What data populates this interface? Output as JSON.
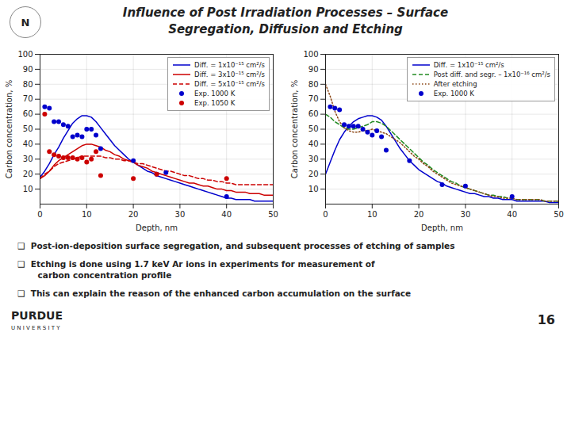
{
  "title": "Influence of Post Irradiation Processes – Surface",
  "subtitle": "Segregation, Diffusion and Etching",
  "annotations": [
    "N",
    "❑  Post-ion-deposition surface segregation, and subsequent processes of etching of samples",
    "❑  Etching is done using 1.7 keV Ar ions in experiments for measurement of\n       carbon concentration profile",
    "❑  This can explain the reason of the enhanced carbon accumulation on the surface",
    "PURDUE",
    "U N I V E R S I T Y",
    "16"
  ],
  "chart_data": [
    {
      "type": "line",
      "xlabel": "Depth, nm",
      "ylabel": "Carbon concentration, %",
      "xlim": [
        0,
        50
      ],
      "ylim": [
        0,
        100
      ],
      "xticks": [
        0,
        10,
        20,
        30,
        40,
        50
      ],
      "yticks": [
        10,
        20,
        30,
        40,
        50,
        60,
        70,
        80,
        90,
        100
      ],
      "grid": true,
      "legend": "upper right",
      "series": [
        {
          "name": "Diff. = 1x10⁻¹⁵ cm²/s",
          "color": "#0000CC",
          "type": "line",
          "line_style": "solid",
          "x": [
            0,
            1,
            2,
            3,
            4,
            5,
            6,
            7,
            8,
            9,
            10,
            11,
            12,
            13,
            14,
            15,
            16,
            17,
            18,
            19,
            20,
            21,
            22,
            23,
            24,
            25,
            26,
            27,
            28,
            29,
            30,
            31,
            32,
            33,
            34,
            35,
            36,
            37,
            38,
            39,
            40,
            41,
            42,
            43,
            44,
            45,
            46,
            47,
            48,
            49,
            50
          ],
          "values": [
            18,
            22,
            27,
            33,
            38,
            44,
            49,
            54,
            57,
            59,
            59,
            58,
            55,
            51,
            47,
            43,
            39,
            36,
            33,
            30,
            28,
            26,
            24,
            22,
            21,
            19,
            18,
            17,
            16,
            15,
            14,
            13,
            12,
            11,
            10,
            9,
            8,
            7,
            6,
            5,
            4,
            4,
            3,
            3,
            3,
            3,
            2,
            2,
            2,
            2,
            2
          ]
        },
        {
          "name": "Diff. = 3x10⁻¹⁵ cm²/s",
          "color": "#CC0000",
          "type": "line",
          "line_style": "solid",
          "x": [
            0,
            1,
            2,
            3,
            4,
            5,
            6,
            7,
            8,
            9,
            10,
            11,
            12,
            13,
            14,
            15,
            16,
            17,
            18,
            19,
            20,
            21,
            22,
            23,
            24,
            25,
            26,
            27,
            28,
            29,
            30,
            31,
            32,
            33,
            34,
            35,
            36,
            37,
            38,
            39,
            40,
            41,
            42,
            43,
            44,
            45,
            46,
            47,
            48,
            49,
            50
          ],
          "values": [
            17,
            19,
            22,
            26,
            29,
            31,
            33,
            35,
            37,
            39,
            40,
            40,
            39,
            38,
            36,
            35,
            33,
            32,
            30,
            29,
            28,
            26,
            25,
            24,
            22,
            21,
            20,
            19,
            18,
            17,
            16,
            15,
            14,
            14,
            13,
            12,
            12,
            11,
            10,
            10,
            9,
            9,
            8,
            8,
            8,
            7,
            7,
            7,
            6,
            6,
            6
          ]
        },
        {
          "name": "Diff. = 5x10⁻¹⁵ cm²/s",
          "color": "#CC0000",
          "type": "line",
          "line_style": "dashed",
          "x": [
            0,
            1,
            2,
            3,
            4,
            5,
            6,
            7,
            8,
            9,
            10,
            11,
            12,
            13,
            14,
            15,
            16,
            17,
            18,
            19,
            20,
            21,
            22,
            23,
            24,
            25,
            26,
            27,
            28,
            29,
            30,
            31,
            32,
            33,
            34,
            35,
            36,
            37,
            38,
            39,
            40,
            41,
            42,
            43,
            44,
            45,
            46,
            47,
            48,
            49,
            50
          ],
          "values": [
            17,
            20,
            22,
            25,
            27,
            28,
            29,
            30,
            31,
            32,
            32,
            32,
            32,
            32,
            31,
            31,
            30,
            30,
            29,
            29,
            28,
            27,
            27,
            26,
            25,
            24,
            23,
            22,
            22,
            21,
            20,
            19,
            19,
            18,
            17,
            17,
            16,
            16,
            15,
            15,
            14,
            14,
            13,
            13,
            13,
            13,
            13,
            13,
            13,
            13,
            13
          ]
        },
        {
          "name": "Exp. 1000 K",
          "color": "#0000CC",
          "type": "scatter",
          "marker": "circle",
          "x": [
            1,
            2,
            3,
            4,
            5,
            6,
            7,
            8,
            9,
            10,
            11,
            12,
            13,
            20,
            25,
            27,
            40
          ],
          "values": [
            65,
            64,
            55,
            55,
            53,
            52,
            45,
            46,
            45,
            50,
            50,
            46,
            37,
            29,
            20,
            21,
            5
          ]
        },
        {
          "name": "Exp. 1050 K",
          "color": "#CC0000",
          "type": "scatter",
          "marker": "circle",
          "x": [
            1,
            2,
            3,
            4,
            5,
            6,
            7,
            8,
            9,
            10,
            11,
            12,
            13,
            20,
            25,
            40
          ],
          "values": [
            60,
            35,
            33,
            32,
            31,
            31,
            31,
            30,
            31,
            28,
            30,
            35,
            19,
            17,
            20,
            17
          ]
        }
      ]
    },
    {
      "type": "line",
      "xlabel": "Depth, nm",
      "ylabel": "Carbon concentration, %",
      "xlim": [
        0,
        50
      ],
      "ylim": [
        0,
        100
      ],
      "xticks": [
        0,
        10,
        20,
        30,
        40,
        50
      ],
      "yticks": [
        10,
        20,
        30,
        40,
        50,
        60,
        70,
        80,
        90,
        100
      ],
      "grid": true,
      "legend": "upper right",
      "series": [
        {
          "name": "Diff. = 1x10⁻¹⁵ cm²/s",
          "color": "#0000CC",
          "type": "line",
          "line_style": "solid",
          "x": [
            0,
            1,
            2,
            3,
            4,
            5,
            6,
            7,
            8,
            9,
            10,
            11,
            12,
            13,
            14,
            15,
            16,
            17,
            18,
            19,
            20,
            21,
            22,
            23,
            24,
            25,
            26,
            27,
            28,
            29,
            30,
            31,
            32,
            33,
            34,
            35,
            36,
            37,
            38,
            39,
            40,
            41,
            42,
            43,
            44,
            45,
            46,
            47,
            48,
            49,
            50
          ],
          "values": [
            20,
            28,
            36,
            43,
            48,
            52,
            55,
            57,
            58,
            59,
            59,
            58,
            56,
            52,
            47,
            42,
            37,
            33,
            29,
            26,
            23,
            21,
            19,
            17,
            15,
            14,
            12,
            11,
            10,
            9,
            8,
            7,
            7,
            6,
            5,
            5,
            4,
            4,
            3,
            3,
            3,
            2,
            2,
            2,
            2,
            2,
            2,
            2,
            1,
            1,
            1
          ]
        },
        {
          "name": "Post diff. and segr. – 1x10⁻¹⁶ cm²/s",
          "color": "#228B22",
          "type": "line",
          "line_style": "dashed",
          "x": [
            0,
            1,
            2,
            3,
            4,
            5,
            6,
            7,
            8,
            9,
            10,
            11,
            12,
            13,
            14,
            15,
            16,
            17,
            18,
            19,
            20,
            21,
            22,
            23,
            24,
            25,
            26,
            27,
            28,
            29,
            30,
            31,
            32,
            33,
            34,
            35,
            36,
            37,
            38,
            39,
            40,
            41,
            42,
            43,
            44,
            45,
            46,
            47,
            48,
            49,
            50
          ],
          "values": [
            60,
            58,
            55,
            53,
            51,
            50,
            50,
            51,
            52,
            53,
            55,
            55,
            54,
            52,
            49,
            46,
            43,
            40,
            37,
            34,
            31,
            28,
            26,
            23,
            21,
            19,
            17,
            15,
            14,
            12,
            11,
            10,
            9,
            8,
            7,
            6,
            6,
            5,
            5,
            4,
            4,
            3,
            3,
            3,
            3,
            3,
            3,
            2,
            2,
            2,
            2
          ]
        },
        {
          "name": "After etching",
          "color": "#8B4513",
          "type": "line",
          "line_style": "dotted",
          "x": [
            0,
            1,
            2,
            3,
            4,
            5,
            6,
            7,
            8,
            9,
            10,
            11,
            12,
            13,
            14,
            15,
            16,
            17,
            18,
            19,
            20,
            21,
            22,
            23,
            24,
            25,
            26,
            27,
            28,
            29,
            30,
            31,
            32,
            33,
            34,
            35,
            36,
            37,
            38,
            39,
            40,
            41,
            42,
            43,
            44,
            45,
            46,
            47,
            48,
            49,
            50
          ],
          "values": [
            80,
            72,
            62,
            55,
            51,
            49,
            48,
            48,
            49,
            49,
            50,
            49,
            48,
            47,
            45,
            43,
            41,
            38,
            35,
            32,
            30,
            27,
            25,
            22,
            20,
            18,
            16,
            14,
            13,
            12,
            11,
            10,
            9,
            8,
            7,
            6,
            5,
            5,
            4,
            4,
            4,
            3,
            3,
            3,
            3,
            3,
            3,
            2,
            2,
            2,
            2
          ]
        },
        {
          "name": "Exp. 1000 K",
          "color": "#0000CC",
          "type": "scatter",
          "marker": "circle",
          "x": [
            1,
            2,
            3,
            4,
            5,
            6,
            7,
            8,
            9,
            10,
            11,
            12,
            13,
            18,
            25,
            30,
            40
          ],
          "values": [
            65,
            64,
            63,
            53,
            52,
            52,
            52,
            50,
            48,
            46,
            49,
            45,
            36,
            29,
            13,
            12,
            5
          ]
        }
      ]
    }
  ]
}
